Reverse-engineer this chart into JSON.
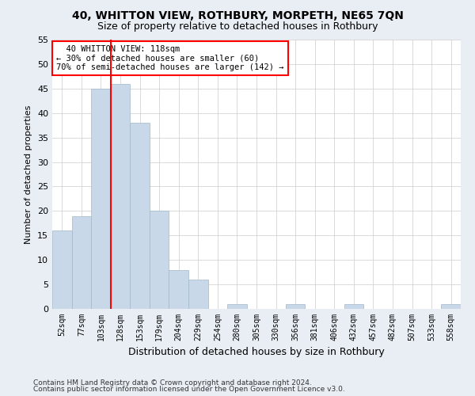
{
  "title1": "40, WHITTON VIEW, ROTHBURY, MORPETH, NE65 7QN",
  "title2": "Size of property relative to detached houses in Rothbury",
  "xlabel": "Distribution of detached houses by size in Rothbury",
  "ylabel": "Number of detached properties",
  "bin_labels": [
    "52sqm",
    "77sqm",
    "103sqm",
    "128sqm",
    "153sqm",
    "179sqm",
    "204sqm",
    "229sqm",
    "254sqm",
    "280sqm",
    "305sqm",
    "330sqm",
    "356sqm",
    "381sqm",
    "406sqm",
    "432sqm",
    "457sqm",
    "482sqm",
    "507sqm",
    "533sqm",
    "558sqm"
  ],
  "bar_values": [
    16,
    19,
    45,
    46,
    38,
    20,
    8,
    6,
    0,
    1,
    0,
    0,
    1,
    0,
    0,
    1,
    0,
    0,
    0,
    0,
    1
  ],
  "bar_color": "#c8d8e8",
  "bar_edge_color": "#a0b8cc",
  "vline_color": "red",
  "vline_bin_index": 2,
  "annotation_line1": "  40 WHITTON VIEW: 118sqm",
  "annotation_line2": "← 30% of detached houses are smaller (60)",
  "annotation_line3": "70% of semi-detached houses are larger (142) →",
  "annotation_box_color": "white",
  "annotation_box_edge": "red",
  "ylim": [
    0,
    55
  ],
  "yticks": [
    0,
    5,
    10,
    15,
    20,
    25,
    30,
    35,
    40,
    45,
    50,
    55
  ],
  "footnote1": "Contains HM Land Registry data © Crown copyright and database right 2024.",
  "footnote2": "Contains public sector information licensed under the Open Government Licence v3.0.",
  "bg_color": "#e8eef4",
  "plot_bg_color": "#ffffff"
}
